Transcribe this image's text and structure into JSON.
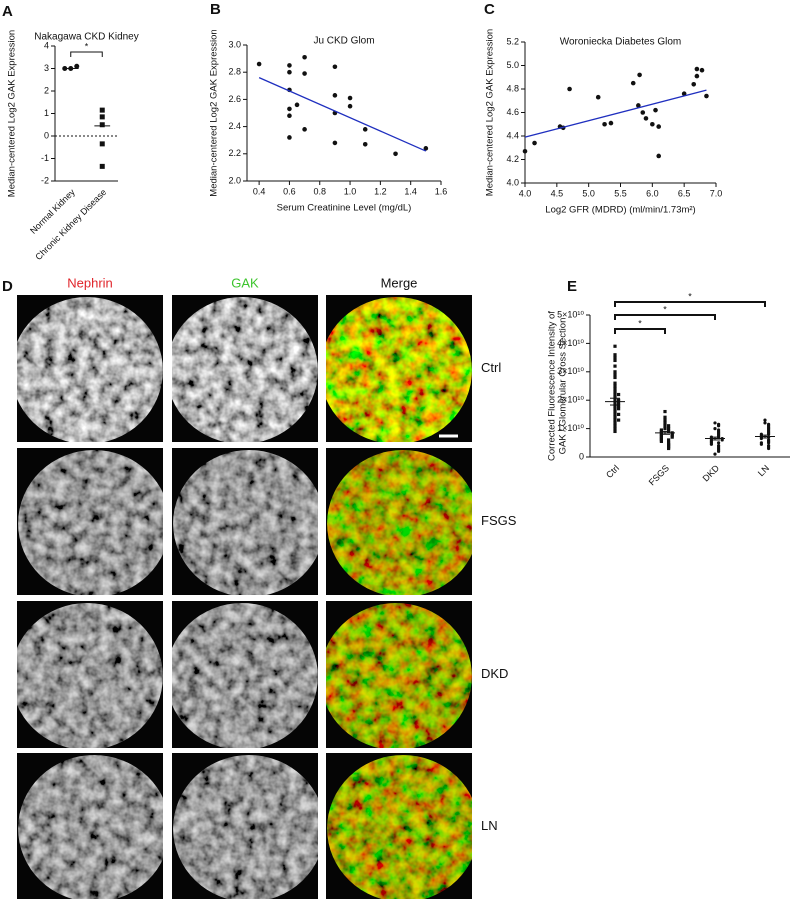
{
  "chart_data": [
    {
      "type": "strip",
      "panel": "A",
      "title": "Nakagawa CKD Kidney",
      "ylabel": "Median-centered Log2 GAK Expression",
      "categories": [
        "Normal Kidney",
        "Chronic Kidney Disease"
      ],
      "values": [
        [
          3.0,
          3.1,
          3.0
        ],
        [
          1.15,
          0.85,
          0.5,
          -0.35,
          -1.35
        ]
      ],
      "medians": [
        3.0,
        0.45
      ],
      "markers": [
        "circle",
        "square"
      ],
      "color": "#111111",
      "hline": 0,
      "comparisons": [
        {
          "between": [
            "Normal Kidney",
            "Chronic Kidney Disease"
          ],
          "label": "*"
        }
      ],
      "ylim": [
        -2,
        4
      ],
      "yticks": [
        -2,
        -1,
        0,
        1,
        2,
        3,
        4
      ]
    },
    {
      "type": "scatter",
      "panel": "B",
      "title": "Ju CKD Glom",
      "xlabel": "Serum Creatinine Level (mg/dL)",
      "ylabel": "Median-centered Log2 GAK Expression",
      "x": [
        0.4,
        0.6,
        0.6,
        0.6,
        0.6,
        0.6,
        0.6,
        0.65,
        0.7,
        0.7,
        0.7,
        0.9,
        0.9,
        0.9,
        0.9,
        1.0,
        1.0,
        1.1,
        1.1,
        1.3,
        1.5
      ],
      "values": [
        2.86,
        2.85,
        2.8,
        2.67,
        2.53,
        2.48,
        2.32,
        2.56,
        2.91,
        2.79,
        2.38,
        2.84,
        2.63,
        2.5,
        2.28,
        2.61,
        2.55,
        2.38,
        2.27,
        2.2,
        2.24
      ],
      "color": "#111111",
      "fit": {
        "x": [
          0.4,
          1.5
        ],
        "values": [
          2.76,
          2.22
        ]
      },
      "fit_color": "#1f2fbf",
      "xlim": [
        0.32,
        1.6
      ],
      "xticks": [
        0.4,
        0.6,
        0.8,
        {
          "value": 1,
          "label": "1.0"
        },
        1.2,
        1.4,
        1.6
      ],
      "ylim": [
        2,
        3
      ],
      "yticks": [
        {
          "value": 2,
          "label": "2.0"
        },
        2.2,
        2.4,
        2.6,
        2.8,
        {
          "value": 3,
          "label": "3.0"
        }
      ]
    },
    {
      "type": "scatter",
      "panel": "C",
      "title": "Woroniecka Diabetes Glom",
      "xlabel": "Log2 GFR (MDRD) (ml/min/1.73m²)",
      "ylabel": "Median-centered Log2 GAK Expression",
      "x": [
        4.0,
        4.15,
        4.55,
        4.6,
        4.7,
        5.15,
        5.25,
        5.35,
        5.7,
        5.8,
        5.78,
        5.85,
        5.9,
        6.0,
        6.05,
        6.1,
        6.1,
        6.5,
        6.65,
        6.7,
        6.7,
        6.78,
        6.85
      ],
      "values": [
        4.27,
        4.34,
        4.48,
        4.47,
        4.8,
        4.73,
        4.5,
        4.51,
        4.85,
        4.92,
        4.66,
        4.6,
        4.55,
        4.5,
        4.62,
        4.23,
        4.48,
        4.76,
        4.84,
        4.97,
        4.91,
        4.96,
        4.74
      ],
      "color": "#111111",
      "fit": {
        "x": [
          4.0,
          6.85
        ],
        "values": [
          4.39,
          4.79
        ]
      },
      "fit_color": "#1f2fbf",
      "xlim": [
        4,
        7
      ],
      "xticks": [
        {
          "value": 4,
          "label": "4.0"
        },
        4.5,
        {
          "value": 5,
          "label": "5.0"
        },
        5.5,
        {
          "value": 6,
          "label": "6.0"
        },
        6.5,
        {
          "value": 7,
          "label": "7.0"
        }
      ],
      "ylim": [
        4,
        5.2
      ],
      "yticks": [
        {
          "value": 4,
          "label": "4.0"
        },
        4.2,
        4.4,
        4.6,
        4.8,
        {
          "value": 5,
          "label": "5.0"
        },
        5.2
      ]
    },
    {
      "type": "strip",
      "panel": "E",
      "ylabel": [
        "Corrected Fluorescence Intensity of",
        "GAK / Glomerular Cross Section"
      ],
      "categories": [
        "Ctrl",
        "FSGS",
        "DKD",
        "LN"
      ],
      "values": [
        [
          39000000000.0,
          36000000000.0,
          35000000000.0,
          34000000000.0,
          32000000000.0,
          30000000000.0,
          29000000000.0,
          28000000000.0,
          26000000000.0,
          25000000000.0,
          24000000000.0,
          23000000000.0,
          22000000000.0,
          22000000000.0,
          21000000000.0,
          20000000000.0,
          20000000000.0,
          19000000000.0,
          19000000000.0,
          18000000000.0,
          18000000000.0,
          17000000000.0,
          17000000000.0,
          16000000000.0,
          15000000000.0,
          15000000000.0,
          14000000000.0,
          13000000000.0,
          13000000000.0,
          12000000000.0,
          11000000000.0,
          10000000000.0,
          9000000000.0
        ],
        [
          16000000000.0,
          14000000000.0,
          13000000000.0,
          12000000000.0,
          11000000000.0,
          11000000000.0,
          10000000000.0,
          10000000000.0,
          9500000000.0,
          9000000000.0,
          9000000000.0,
          8500000000.0,
          8500000000.0,
          8000000000.0,
          8000000000.0,
          7500000000.0,
          7500000000.0,
          7000000000.0,
          7000000000.0,
          6500000000.0,
          6000000000.0,
          6000000000.0,
          5500000000.0,
          5000000000.0,
          4500000000.0,
          4000000000.0,
          3500000000.0,
          3000000000.0
        ],
        [
          12000000000.0,
          11500000000.0,
          11000000000.0,
          10000000000.0,
          9500000000.0,
          9000000000.0,
          8500000000.0,
          8000000000.0,
          7500000000.0,
          7000000000.0,
          7000000000.0,
          6500000000.0,
          6500000000.0,
          6000000000.0,
          6000000000.0,
          5500000000.0,
          5000000000.0,
          5000000000.0,
          4500000000.0,
          4000000000.0,
          3500000000.0,
          3000000000.0,
          2500000000.0,
          2000000000.0,
          1000000000.0
        ],
        [
          13000000000.0,
          12000000000.0,
          11500000000.0,
          11000000000.0,
          10500000000.0,
          10000000000.0,
          9500000000.0,
          9000000000.0,
          8500000000.0,
          8000000000.0,
          8000000000.0,
          7500000000.0,
          7000000000.0,
          7000000000.0,
          6500000000.0,
          6000000000.0,
          5500000000.0,
          5000000000.0,
          5000000000.0,
          4500000000.0,
          4000000000.0,
          3500000000.0,
          3000000000.0
        ]
      ],
      "means": [
        19500000000.0,
        8500000000.0,
        6500000000.0,
        7200000000.0
      ],
      "sem": [
        1200000000.0,
        500000000.0,
        500000000.0,
        500000000.0
      ],
      "markers": [
        "square",
        "square",
        "circle",
        "circle"
      ],
      "color": "#111111",
      "comparisons": [
        {
          "between": [
            "Ctrl",
            "FSGS"
          ],
          "label": "*"
        },
        {
          "between": [
            "Ctrl",
            "DKD"
          ],
          "label": "*"
        },
        {
          "between": [
            "Ctrl",
            "LN"
          ],
          "label": "*"
        }
      ],
      "ylim": [
        0,
        50000000000.0
      ],
      "yticks": [
        0,
        {
          "value": 10000000000.0,
          "label": "1×10¹⁰"
        },
        {
          "value": 20000000000.0,
          "label": "2×10¹⁰"
        },
        {
          "value": 30000000000.0,
          "label": "3×10¹⁰"
        },
        {
          "value": 40000000000.0,
          "label": "4×10¹⁰"
        },
        {
          "value": 50000000000.0,
          "label": "5×10¹⁰"
        }
      ]
    }
  ],
  "figure_d": {
    "panel": "D",
    "columns": [
      "Nephrin",
      "GAK",
      "Merge"
    ],
    "rows": [
      "Ctrl",
      "FSGS",
      "DKD",
      "LN"
    ]
  }
}
